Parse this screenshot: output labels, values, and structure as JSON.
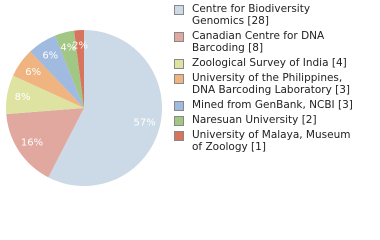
{
  "chart_data": {
    "type": "pie",
    "categories": [
      "Centre for Biodiversity Genomics [28]",
      "Canadian Centre for DNA Barcoding [8]",
      "Zoological Survey of India [4]",
      "University of the Philippines, DNA Barcoding Laboratory [3]",
      "Mined from GenBank, NCBI [3]",
      "Naresuan University [2]",
      "University of Malaya, Museum of Zoology [1]"
    ],
    "values": [
      57,
      16,
      8,
      6,
      6,
      4,
      2
    ],
    "value_labels": [
      "57%",
      "16%",
      "8%",
      "6%",
      "6%",
      "4%",
      "2%"
    ],
    "colors": [
      "#ccd9e6",
      "#e0a89f",
      "#dfe3a2",
      "#efb47f",
      "#a1bae0",
      "#a2c683",
      "#d8745e"
    ]
  }
}
